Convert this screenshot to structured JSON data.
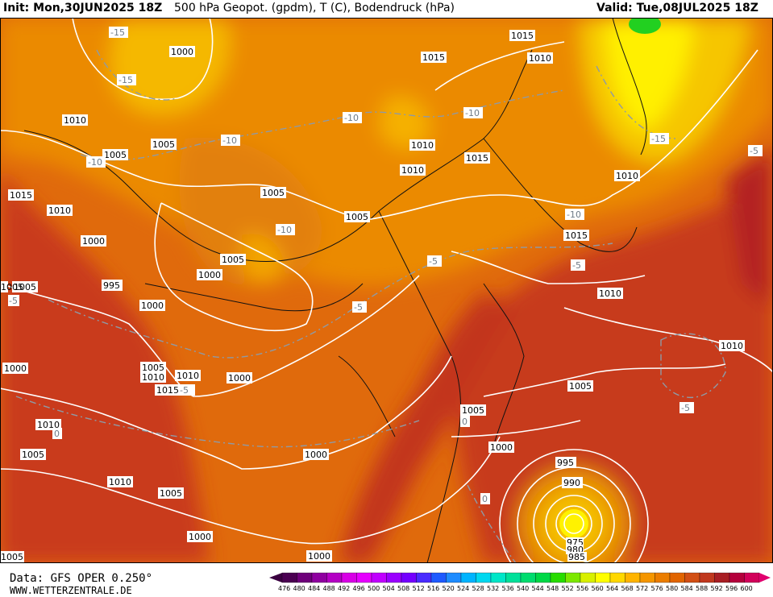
{
  "header": {
    "init": "Init: Mon,30JUN2025 18Z",
    "title": "500 hPa Geopot. (gpdm), T (C), Bodendruck (hPa)",
    "valid": "Valid: Tue,08JUL2025 18Z"
  },
  "footer": {
    "data_source": "Data: GFS OPER 0.250°",
    "website": "WWW.WETTERZENTRALE.DE"
  },
  "colorbar": {
    "levels": [
      "476",
      "480",
      "484",
      "488",
      "492",
      "496",
      "500",
      "504",
      "508",
      "512",
      "516",
      "520",
      "524",
      "528",
      "532",
      "536",
      "540",
      "544",
      "548",
      "552",
      "556",
      "560",
      "564",
      "568",
      "572",
      "576",
      "580",
      "584",
      "588",
      "592",
      "596",
      "600"
    ],
    "colors": [
      "#4b0052",
      "#6e007a",
      "#8f00a0",
      "#b400c4",
      "#d800e6",
      "#e600ff",
      "#c000ff",
      "#9a00ff",
      "#7400ff",
      "#4a2cff",
      "#1e5aff",
      "#1e8cff",
      "#00b4ff",
      "#00d8f0",
      "#00e6c8",
      "#00e09a",
      "#00dc6e",
      "#00d846",
      "#28dc00",
      "#7ce800",
      "#d8f000",
      "#ffff00",
      "#ffd800",
      "#ffb400",
      "#f59600",
      "#eb7d00",
      "#e16400",
      "#d24f14",
      "#c0381e",
      "#a81e24",
      "#b4003c",
      "#d2005a"
    ]
  },
  "map_labels": {
    "isobars": [
      {
        "text": "1000"
      },
      {
        "text": "1015"
      },
      {
        "text": "1010"
      },
      {
        "text": "1010"
      },
      {
        "text": "1015"
      },
      {
        "text": "1010"
      },
      {
        "text": "1005"
      },
      {
        "text": "1005"
      },
      {
        "text": "1010"
      },
      {
        "text": "1015"
      },
      {
        "text": "1010"
      },
      {
        "text": "1015"
      },
      {
        "text": "1010"
      },
      {
        "text": "1005"
      },
      {
        "text": "1005"
      },
      {
        "text": "1000"
      },
      {
        "text": "1005"
      },
      {
        "text": "1000"
      },
      {
        "text": "995"
      },
      {
        "text": "1005"
      },
      {
        "text": "1000"
      },
      {
        "text": "1015"
      },
      {
        "text": "1010"
      },
      {
        "text": "1010"
      },
      {
        "text": "1000"
      },
      {
        "text": "1005"
      },
      {
        "text": "1010"
      },
      {
        "text": "1010"
      },
      {
        "text": "1015"
      },
      {
        "text": "1000"
      },
      {
        "text": "1005"
      },
      {
        "text": "1005"
      },
      {
        "text": "1010"
      },
      {
        "text": "1010"
      },
      {
        "text": "1005"
      },
      {
        "text": "1005"
      },
      {
        "text": "1000"
      },
      {
        "text": "1000"
      },
      {
        "text": "1000"
      },
      {
        "text": "995"
      },
      {
        "text": "990"
      },
      {
        "text": "975"
      },
      {
        "text": "980"
      },
      {
        "text": "985"
      },
      {
        "text": "1005"
      },
      {
        "text": "1005"
      },
      {
        "text": "1000"
      }
    ],
    "temperatures": [
      {
        "text": "-15"
      },
      {
        "text": "-15"
      },
      {
        "text": "-10"
      },
      {
        "text": "-10"
      },
      {
        "text": "-10"
      },
      {
        "text": "-10"
      },
      {
        "text": "-10"
      },
      {
        "text": "-15"
      },
      {
        "text": "-5"
      },
      {
        "text": "-10"
      },
      {
        "text": "-5"
      },
      {
        "text": "-5"
      },
      {
        "text": "-5"
      },
      {
        "text": "-5"
      },
      {
        "text": "-5"
      },
      {
        "text": "-5"
      },
      {
        "text": "0"
      },
      {
        "text": "0"
      },
      {
        "text": "0"
      },
      {
        "text": "-5"
      }
    ]
  }
}
